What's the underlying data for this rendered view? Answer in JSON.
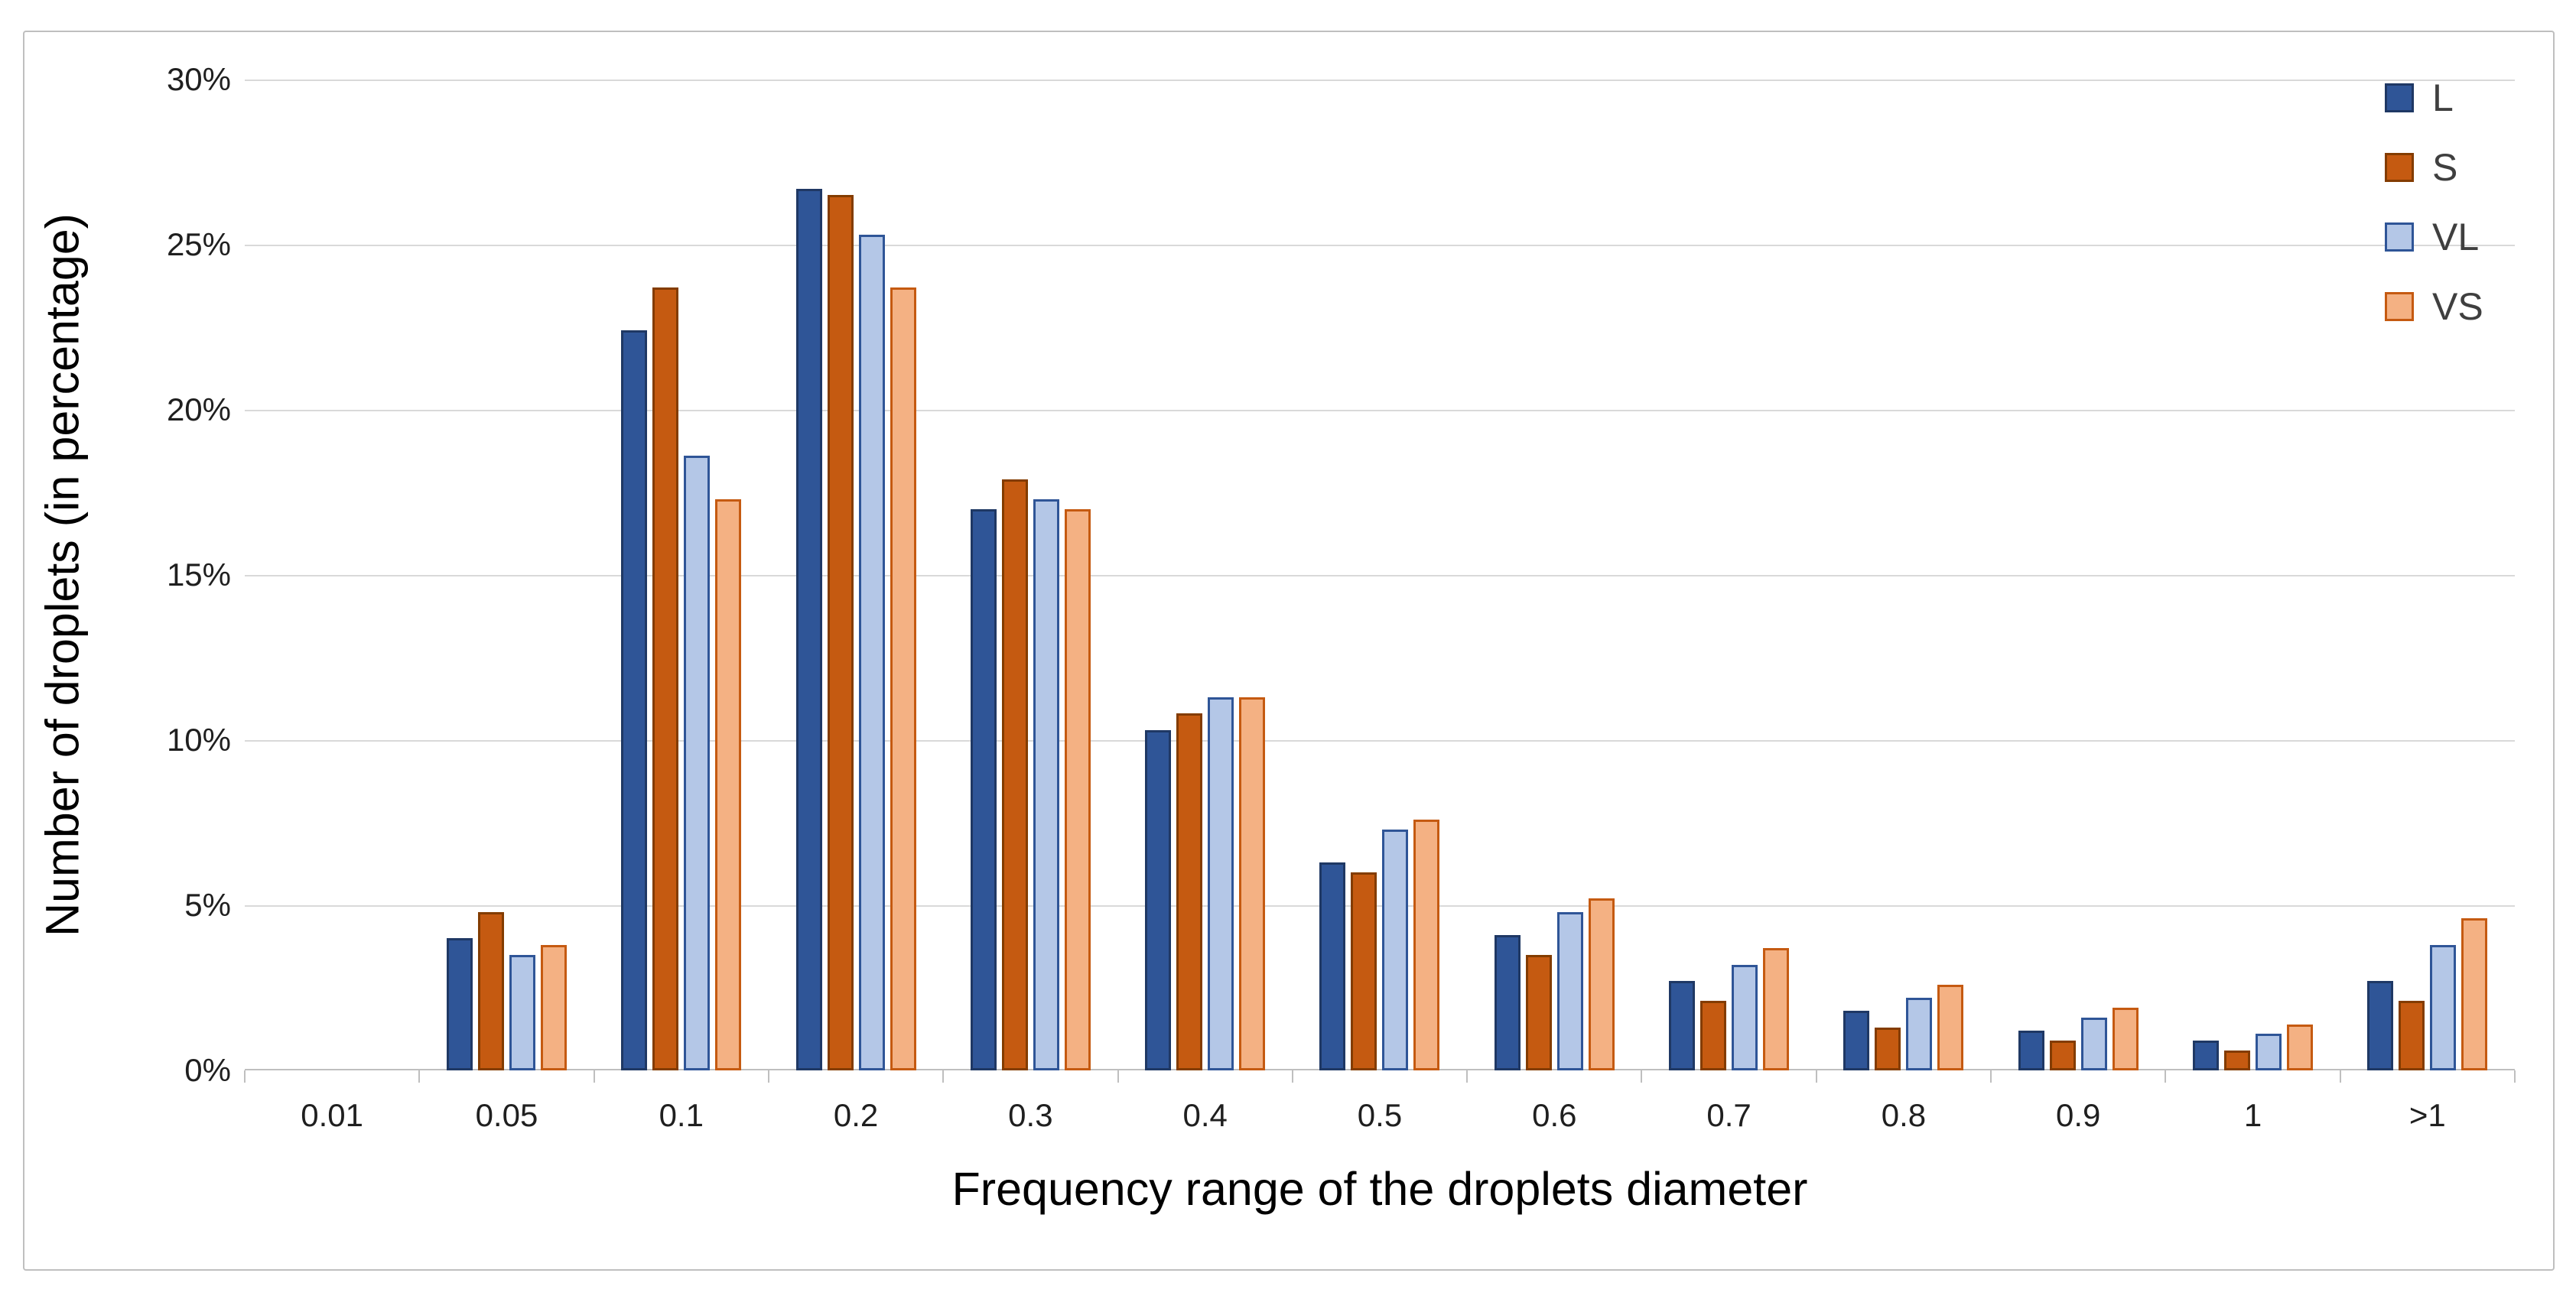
{
  "chart_data": {
    "type": "bar",
    "title": "",
    "xlabel": "Frequency range of the droplets diameter",
    "ylabel": "Number of droplets (in percentage)",
    "categories": [
      "0.01",
      "0.05",
      "0.1",
      "0.2",
      "0.3",
      "0.4",
      "0.5",
      "0.6",
      "0.7",
      "0.8",
      "0.9",
      "1",
      ">1"
    ],
    "y_tick_labels": [
      "0%",
      "5%",
      "10%",
      "15%",
      "20%",
      "25%",
      "30%"
    ],
    "ylim": [
      0,
      30
    ],
    "y_tick_step": 5,
    "grid": true,
    "legend_position": "top-right",
    "series": [
      {
        "name": "L",
        "fill": "#2F5597",
        "border": "#1F3864",
        "values": [
          0,
          4.0,
          22.4,
          26.7,
          17.0,
          10.3,
          6.3,
          4.1,
          2.7,
          1.8,
          1.2,
          0.9,
          2.7
        ]
      },
      {
        "name": "S",
        "fill": "#C55A11",
        "border": "#833C00",
        "values": [
          0,
          4.8,
          23.7,
          26.5,
          17.9,
          10.8,
          6.0,
          3.5,
          2.1,
          1.3,
          0.9,
          0.6,
          2.1
        ]
      },
      {
        "name": "VL",
        "fill": "#B4C7E7",
        "border": "#2F5597",
        "values": [
          0,
          3.5,
          18.6,
          25.3,
          17.3,
          11.3,
          7.3,
          4.8,
          3.2,
          2.2,
          1.6,
          1.1,
          3.8
        ]
      },
      {
        "name": "VS",
        "fill": "#F4B183",
        "border": "#C55A11",
        "values": [
          0,
          3.8,
          17.3,
          23.7,
          17.0,
          11.3,
          7.6,
          5.2,
          3.7,
          2.6,
          1.9,
          1.4,
          4.6
        ]
      }
    ],
    "colors": {
      "background": "#FFFFFF",
      "frame_border": "#BFBFBF",
      "gridline": "#D9D9D9",
      "axis_line": "#BFBFBF",
      "tick_label": "#1F1F1F",
      "axis_title": "#000000",
      "legend_text": "#3F3F3F"
    }
  }
}
